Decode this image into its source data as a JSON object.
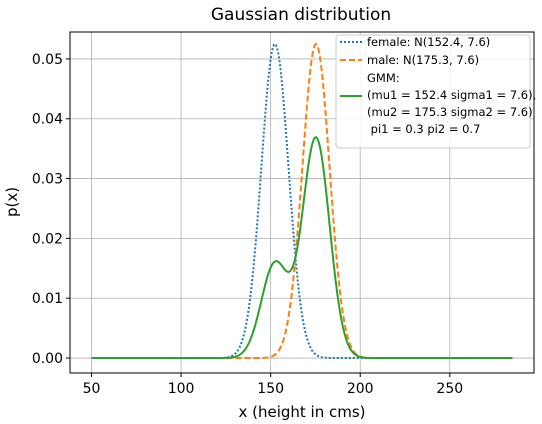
{
  "chart_data": {
    "type": "line",
    "title": "Gaussian distribution",
    "xlabel": "x (height in cms)",
    "ylabel": "p(x)",
    "xlim": [
      38,
      297
    ],
    "ylim": [
      -0.0025,
      0.0545
    ],
    "xticks": [
      50,
      100,
      150,
      200,
      250
    ],
    "xtick_labels": [
      "50",
      "100",
      "150",
      "200",
      "250"
    ],
    "yticks": [
      0.0,
      0.01,
      0.02,
      0.03,
      0.04,
      0.05
    ],
    "ytick_labels": [
      "0.00",
      "0.01",
      "0.02",
      "0.03",
      "0.04",
      "0.05"
    ],
    "grid": true,
    "legend_position": "top-right",
    "x_range": [
      50,
      285
    ],
    "series": [
      {
        "key": "female",
        "name": "female: N(152.4, 7.6)",
        "color": "#1f77b4",
        "style": "dotted",
        "components": [
          {
            "mu": 152.4,
            "sigma": 7.6,
            "weight": 1.0
          }
        ]
      },
      {
        "key": "male",
        "name": "male: N(175.3, 7.6)",
        "color": "#ff7f0e",
        "style": "dashed",
        "components": [
          {
            "mu": 175.3,
            "sigma": 7.6,
            "weight": 1.0
          }
        ]
      },
      {
        "key": "gmm",
        "name": "GMM:",
        "name_lines": [
          "(mu1 = 152.4 sigma1 = 7.6),",
          "(mu2 = 175.3 sigma2 = 7.6)",
          " pi1 = 0.3 pi2 = 0.7"
        ],
        "color": "#2ca02c",
        "style": "solid",
        "components": [
          {
            "mu": 152.4,
            "sigma": 7.6,
            "weight": 0.3
          },
          {
            "mu": 175.3,
            "sigma": 7.6,
            "weight": 0.7
          }
        ]
      }
    ]
  }
}
